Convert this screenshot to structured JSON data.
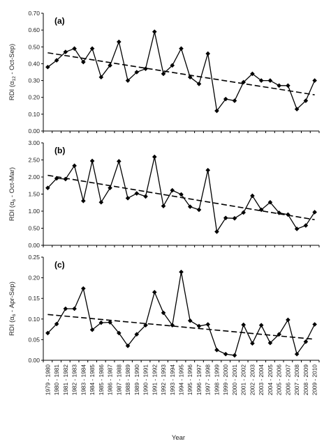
{
  "year_label": "Year",
  "chart_data": [
    {
      "type": "line",
      "panel_label": "(a)",
      "ylabel": {
        "main": "RDI (α",
        "sub": "12",
        "rest": " - Oct-Sep)"
      },
      "ylim": [
        0,
        0.7
      ],
      "yticks": [
        "0.00",
        "0.10",
        "0.20",
        "0.30",
        "0.40",
        "0.50",
        "0.60",
        "0.70"
      ],
      "ytick_values": [
        0,
        0.1,
        0.2,
        0.3,
        0.4,
        0.5,
        0.6,
        0.7
      ],
      "values": [
        0.38,
        0.42,
        0.47,
        0.49,
        0.41,
        0.49,
        0.32,
        0.39,
        0.53,
        0.3,
        0.35,
        0.37,
        0.59,
        0.34,
        0.39,
        0.49,
        0.32,
        0.28,
        0.46,
        0.12,
        0.19,
        0.18,
        0.29,
        0.34,
        0.3,
        0.3,
        0.27,
        0.27,
        0.13,
        0.18,
        0.3
      ],
      "trend": [
        0.465,
        0.215
      ]
    },
    {
      "type": "line",
      "panel_label": "(b)",
      "ylabel": {
        "main": "RDI (α",
        "sub": "6",
        "rest": " - Oct-Mar)"
      },
      "ylim": [
        0,
        3
      ],
      "yticks": [
        "0.00",
        "0.50",
        "1.00",
        "1.50",
        "2.00",
        "2.50",
        "3.00"
      ],
      "ytick_values": [
        0,
        0.5,
        1,
        1.5,
        2,
        2.5,
        3
      ],
      "values": [
        1.68,
        1.96,
        1.94,
        2.33,
        1.3,
        2.47,
        1.26,
        1.68,
        2.46,
        1.38,
        1.52,
        1.43,
        2.59,
        1.15,
        1.61,
        1.49,
        1.13,
        1.04,
        2.2,
        0.4,
        0.8,
        0.79,
        0.96,
        1.45,
        1.04,
        1.26,
        0.95,
        0.9,
        0.48,
        0.58,
        0.97
      ],
      "trend": [
        2.05,
        0.75
      ]
    },
    {
      "type": "line",
      "panel_label": "(c)",
      "ylabel": {
        "main": "RDI (α",
        "sub": "6",
        "rest": " - Apr-Sep)"
      },
      "ylim": [
        0,
        0.25
      ],
      "yticks": [
        "0.00",
        "0.05",
        "0.10",
        "0.15",
        "0.20",
        "0.25"
      ],
      "ytick_values": [
        0,
        0.05,
        0.1,
        0.15,
        0.2,
        0.25
      ],
      "values": [
        0.066,
        0.088,
        0.125,
        0.125,
        0.174,
        0.074,
        0.091,
        0.092,
        0.066,
        0.035,
        0.063,
        0.085,
        0.165,
        0.115,
        0.085,
        0.214,
        0.096,
        0.083,
        0.087,
        0.025,
        0.015,
        0.012,
        0.086,
        0.041,
        0.085,
        0.042,
        0.063,
        0.098,
        0.015,
        0.045,
        0.087
      ],
      "trend": [
        0.111,
        0.051
      ]
    }
  ],
  "x_categories": [
    "1979 - 1980",
    "1980 - 1981",
    "1981 - 1982",
    "1982 - 1983",
    "1983 - 1984",
    "1984 - 1985",
    "1985 - 1986",
    "1986 - 1987",
    "1987 - 1988",
    "1988 - 1989",
    "1989 - 1990",
    "1990 - 1991",
    "1991 - 1992",
    "1992 - 1993",
    "1993 - 1994",
    "1994 - 1995",
    "1995 - 1996",
    "1996 - 1997",
    "1997 - 1998",
    "1998 - 1999",
    "1999 - 2000",
    "2000 - 2001",
    "2001 - 2002",
    "2002 - 2003",
    "2003 - 2004",
    "2004 - 2005",
    "2005 - 2006",
    "2006 - 2007",
    "2007 - 2008",
    "2008 - 2009",
    "2009 - 2010"
  ],
  "colors": {
    "series": "#000000",
    "trend": "#000000",
    "axis": "#000000"
  }
}
